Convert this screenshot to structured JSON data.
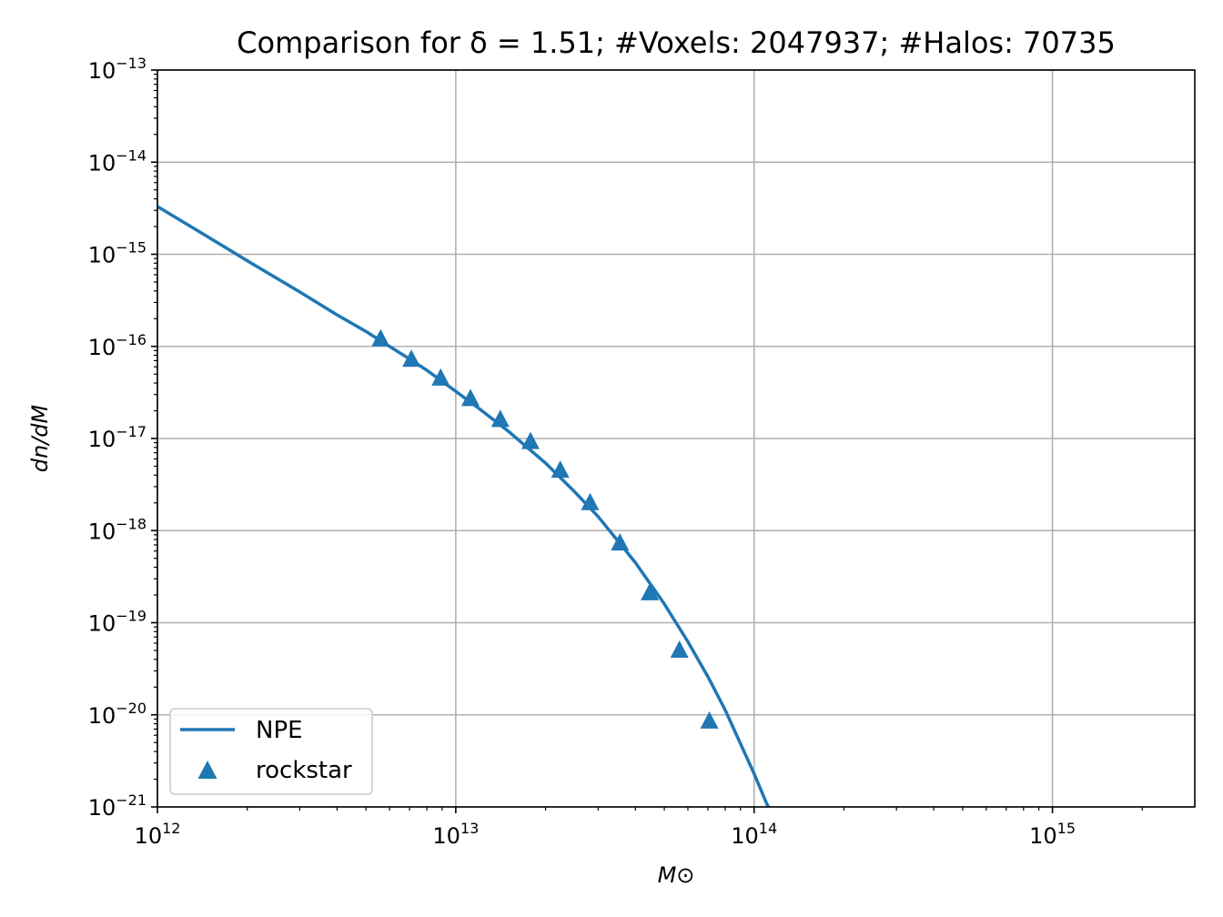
{
  "chart_data": {
    "type": "line",
    "title": "Comparison for δ = 1.51; #Voxels: 2047937; #Halos: 70735",
    "xlabel": "M⊙",
    "ylabel": "dn/dM",
    "xscale": "log",
    "yscale": "log",
    "xlim": [
      1000000000000.0,
      3000000000000000.0
    ],
    "ylim": [
      1e-21,
      1e-13
    ],
    "grid": true,
    "legend_position": "lower-left",
    "x_ticks": [
      {
        "base": "10",
        "exp": "12",
        "value": 1000000000000.0
      },
      {
        "base": "10",
        "exp": "13",
        "value": 10000000000000.0
      },
      {
        "base": "10",
        "exp": "14",
        "value": 100000000000000.0
      },
      {
        "base": "10",
        "exp": "15",
        "value": 1000000000000000.0
      }
    ],
    "y_ticks": [
      {
        "base": "10",
        "exp": "−13",
        "value": 1e-13
      },
      {
        "base": "10",
        "exp": "−14",
        "value": 1e-14
      },
      {
        "base": "10",
        "exp": "−15",
        "value": 1e-15
      },
      {
        "base": "10",
        "exp": "−16",
        "value": 1e-16
      },
      {
        "base": "10",
        "exp": "−17",
        "value": 1e-17
      },
      {
        "base": "10",
        "exp": "−18",
        "value": 1e-18
      },
      {
        "base": "10",
        "exp": "−19",
        "value": 1e-19
      },
      {
        "base": "10",
        "exp": "−20",
        "value": 1e-20
      },
      {
        "base": "10",
        "exp": "−21",
        "value": 1e-21
      }
    ],
    "series": [
      {
        "name": "NPE",
        "kind": "line",
        "color": "#1f77b4",
        "x": [
          1000000000000.0,
          1500000000000.0,
          2000000000000.0,
          3000000000000.0,
          4000000000000.0,
          5000000000000.0,
          6000000000000.0,
          7000000000000.0,
          8000000000000.0,
          10000000000000.0,
          12000000000000.0,
          15000000000000.0,
          20000000000000.0,
          25000000000000.0,
          30000000000000.0,
          40000000000000.0,
          50000000000000.0,
          60000000000000.0,
          70000000000000.0,
          80000000000000.0,
          100000000000000.0,
          110000000000000.0,
          125000000000000.0
        ],
        "y": [
          3.3e-15,
          1.5e-15,
          8.5e-16,
          3.9e-16,
          2.2e-16,
          1.45e-16,
          1e-16,
          7.3e-17,
          5.5e-17,
          3.25e-17,
          2.1e-17,
          1.2e-17,
          5.4e-18,
          2.65e-18,
          1.42e-18,
          4.5e-19,
          1.6e-19,
          6.2e-20,
          2.6e-20,
          1.13e-20,
          2.3e-21,
          1.1e-21,
          4.6e-22
        ]
      },
      {
        "name": "rockstar",
        "kind": "scatter",
        "marker": "triangle",
        "color": "#1f77b4",
        "x": [
          5600000000000.0,
          7100000000000.0,
          8900000000000.0,
          11200000000000.0,
          14100000000000.0,
          17800000000000.0,
          22400000000000.0,
          28200000000000.0,
          35500000000000.0,
          44700000000000.0,
          56200000000000.0,
          70800000000000.0
        ],
        "y": [
          1.2e-16,
          7.2e-17,
          4.5e-17,
          2.7e-17,
          1.6e-17,
          9.2e-18,
          4.5e-18,
          2e-18,
          7.3e-19,
          2.1e-19,
          5e-20,
          8.5e-21
        ]
      }
    ]
  }
}
